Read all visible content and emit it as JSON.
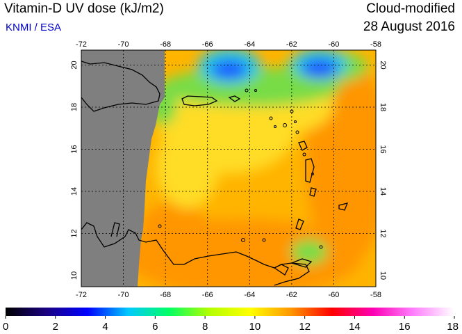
{
  "header": {
    "title": "Vitamin-D UV dose (kJ/m2)",
    "source": "KNMI / ESA",
    "product": "Cloud-modified",
    "date": "28 August 2016"
  },
  "map": {
    "lon_labels": [
      "-72",
      "-70",
      "-68",
      "-66",
      "-64",
      "-62",
      "-60",
      "-58"
    ],
    "lat_labels": [
      "10",
      "12",
      "14",
      "16",
      "18",
      "20"
    ],
    "colors": {
      "no_data": "#7f7f7f",
      "field_main": "#ffb400",
      "field_orange": "#ff9600",
      "field_yellow": "#ffdc28",
      "field_green": "#78dc46",
      "field_cyan": "#28c8e6",
      "field_blue": "#1e5aff"
    }
  },
  "colorbar": {
    "labels": [
      "0",
      "2",
      "4",
      "6",
      "8",
      "10",
      "12",
      "14",
      "16",
      "18"
    ],
    "stops": [
      "#000000",
      "#1a0080",
      "#0000ff",
      "#00c8ff",
      "#00ff64",
      "#b4ff00",
      "#ffff00",
      "#ff9600",
      "#ff0000",
      "#ff00b4",
      "#ff80ff",
      "#ffffff"
    ]
  }
}
